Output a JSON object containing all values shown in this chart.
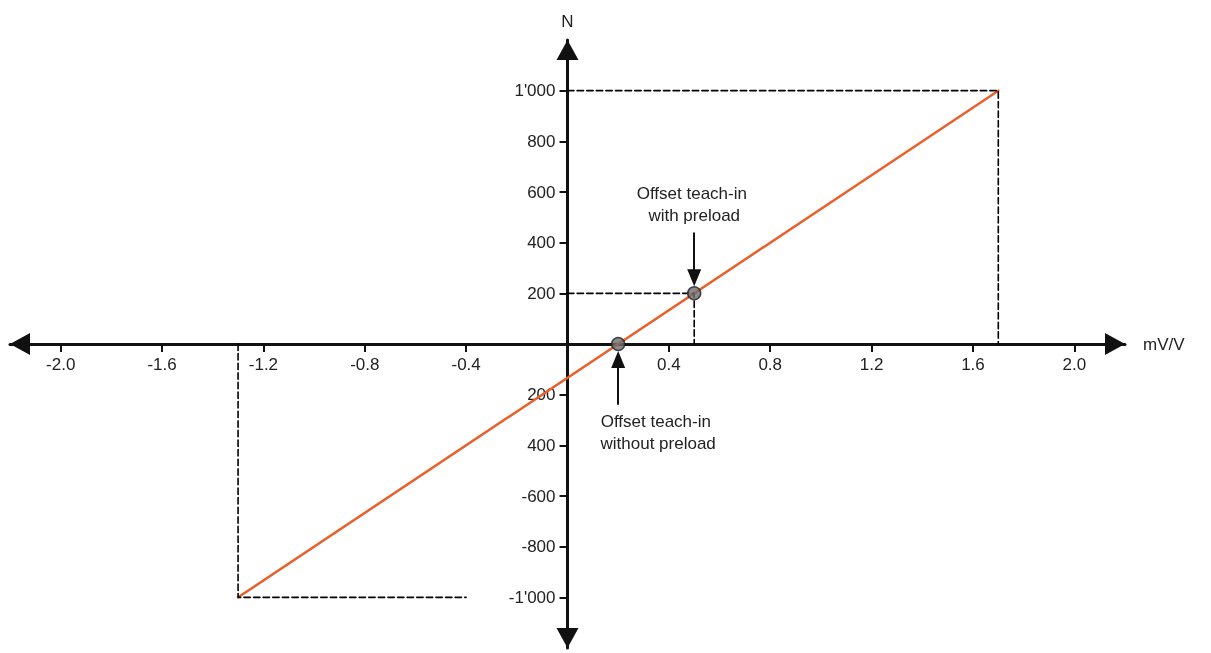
{
  "chart_data": {
    "type": "line",
    "xlabel": "mV/V",
    "ylabel": "N",
    "xlim": [
      -2.2,
      2.2
    ],
    "ylim": [
      -1200,
      1200
    ],
    "xticks": [
      {
        "value": -2,
        "label": "-2.0"
      },
      {
        "value": -1.6,
        "label": "-1.6"
      },
      {
        "value": -1.2,
        "label": "-1.2"
      },
      {
        "value": -0.8,
        "label": "-0.8"
      },
      {
        "value": -0.4,
        "label": "-0.4"
      },
      {
        "value": 0.4,
        "label": "0.4"
      },
      {
        "value": 0.8,
        "label": "0.8"
      },
      {
        "value": 1.2,
        "label": "1.2"
      },
      {
        "value": 1.6,
        "label": "1.6"
      },
      {
        "value": 2,
        "label": "2.0"
      }
    ],
    "yticks": [
      {
        "value": -1000,
        "label": "-1'000"
      },
      -800,
      -600,
      {
        "value": -400,
        "label": "400"
      },
      {
        "value": -200,
        "label": "200"
      },
      200,
      400,
      600,
      800,
      {
        "value": 1000,
        "label": "1'000"
      }
    ],
    "grid": false,
    "series": [
      {
        "type": "line",
        "color": "#e8602c",
        "x": [
          -1.3,
          1.7
        ],
        "values": [
          -1000,
          1000
        ],
        "marker": "none",
        "line_style": "solid"
      },
      {
        "type": "line",
        "color": "#000000",
        "x": [
          -1.3,
          -1.3,
          -0.4
        ],
        "values": [
          0,
          -1000,
          -1000
        ],
        "marker": "none",
        "line_style": "dashed"
      },
      {
        "type": "line",
        "color": "#000000",
        "x": [
          0,
          1.7,
          1.7
        ],
        "values": [
          1000,
          1000,
          0
        ],
        "marker": "none",
        "line_style": "dashed"
      },
      {
        "type": "line",
        "color": "#000000",
        "x": [
          0,
          0.5,
          0.5
        ],
        "values": [
          200,
          200,
          0
        ],
        "marker": "none",
        "line_style": "dashed"
      },
      {
        "type": "scatter",
        "color": "#6e6e6e",
        "x": [
          0.5,
          0.2
        ],
        "values": [
          200,
          0
        ],
        "marker": "circle"
      }
    ],
    "annotations": [
      "Offset teach-in with preload",
      "Offset teach-in without preload"
    ]
  }
}
